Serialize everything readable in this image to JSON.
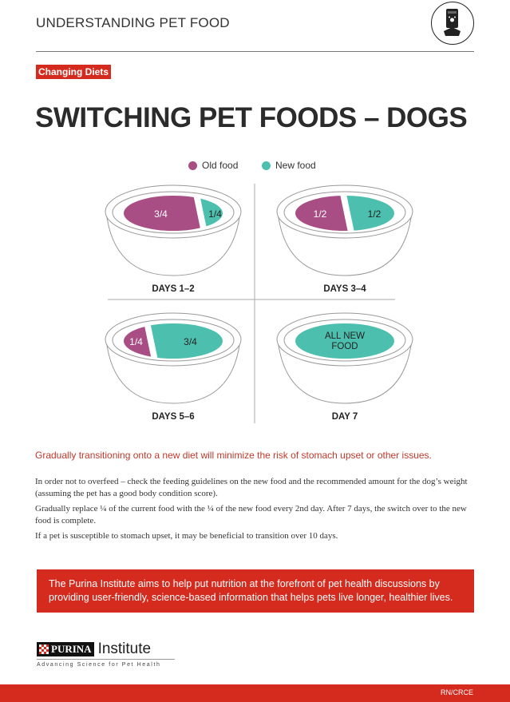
{
  "header": {
    "title": "UNDERSTANDING PET FOOD",
    "icon": "pet-food-bag-icon"
  },
  "tag": "Changing Diets",
  "title": "SWITCHING PET FOODS – DOGS",
  "legend": [
    {
      "label": "Old food",
      "color": "#a84e84"
    },
    {
      "label": "New food",
      "color": "#4dbfae"
    }
  ],
  "bowls": [
    {
      "label": "DAYS 1–2",
      "old": "3/4",
      "new": "1/4",
      "old_fraction": 0.75
    },
    {
      "label": "DAYS 3–4",
      "old": "1/2",
      "new": "1/2",
      "old_fraction": 0.5
    },
    {
      "label": "DAYS 5–6",
      "old": "1/4",
      "new": "3/4",
      "old_fraction": 0.25
    },
    {
      "label": "DAY 7",
      "old": "",
      "new": "ALL NEW FOOD",
      "old_fraction": 0
    }
  ],
  "intro": "Gradually transitioning onto a new diet will minimize the risk of stomach upset or other issues.",
  "paragraphs": [
    "In order not to overfeed – check the feeding guidelines on the new food and the recommended amount for the dog’s weight (assuming the pet has a good body condition score).",
    "Gradually replace ¼ of the current food with the ¼ of the new food every 2nd day. After 7 days, the switch over to the new food is complete.",
    "If a pet is susceptible to stomach upset, it may be beneficial to transition over 10 days."
  ],
  "banner": "The Purina Institute aims to help put nutrition at the forefront of pet health discussions by providing user-friendly, science-based information that helps pets live longer, healthier lives.",
  "logo": {
    "brand": "PURINA",
    "name": "Institute",
    "tagline": "Advancing Science for Pet Health"
  },
  "footer": {
    "code": "RN/CRCE"
  },
  "colors": {
    "accent": "#d52b1e"
  }
}
